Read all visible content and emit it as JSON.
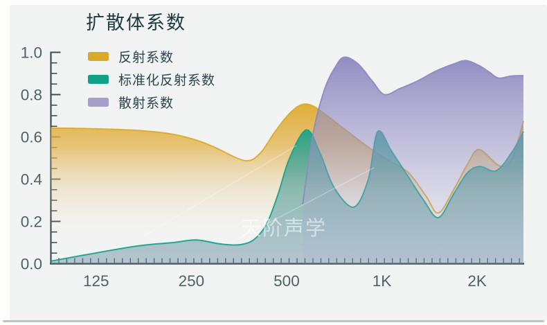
{
  "chart_data": {
    "type": "area",
    "title": "扩散体系数",
    "watermark": "天阶声学",
    "x_axis": {
      "scale": "log2",
      "unit": "Hz",
      "min": 90,
      "max": 2800,
      "minor_ticks_per_octave": 12,
      "ticks": [
        {
          "f": 125,
          "label": "125"
        },
        {
          "f": 250,
          "label": "250"
        },
        {
          "f": 500,
          "label": "500"
        },
        {
          "f": 1000,
          "label": "1K"
        },
        {
          "f": 2000,
          "label": "2K"
        }
      ]
    },
    "y_axis": {
      "min": 0,
      "max": 1,
      "minor_step": 0.05,
      "ticks": [
        {
          "v": 0.0,
          "label": "0.0"
        },
        {
          "v": 0.2,
          "label": "0.2"
        },
        {
          "v": 0.4,
          "label": "0.4"
        },
        {
          "v": 0.6,
          "label": "0.6"
        },
        {
          "v": 0.8,
          "label": "0.8"
        },
        {
          "v": 1.0,
          "label": "1.0"
        }
      ]
    },
    "series": [
      {
        "name": "反射系数",
        "color": "#DBA92C",
        "swatch": "#D9A92B",
        "points": [
          [
            90,
            0.642
          ],
          [
            126,
            0.638
          ],
          [
            171,
            0.63
          ],
          [
            219,
            0.612
          ],
          [
            262,
            0.582
          ],
          [
            297,
            0.55
          ],
          [
            368,
            0.488
          ],
          [
            411,
            0.52
          ],
          [
            455,
            0.615
          ],
          [
            503,
            0.7
          ],
          [
            549,
            0.748
          ],
          [
            591,
            0.752
          ],
          [
            645,
            0.72
          ],
          [
            772,
            0.63
          ],
          [
            898,
            0.555
          ],
          [
            1045,
            0.49
          ],
          [
            1214,
            0.43
          ],
          [
            1377,
            0.32
          ],
          [
            1508,
            0.24
          ],
          [
            1685,
            0.35
          ],
          [
            1863,
            0.47
          ],
          [
            2028,
            0.54
          ],
          [
            2360,
            0.462
          ],
          [
            2580,
            0.5
          ],
          [
            2800,
            0.675
          ]
        ]
      },
      {
        "name": "标准化反射系数",
        "color": "#16A28A",
        "swatch": "#12A089",
        "points": [
          [
            90,
            0.012
          ],
          [
            124,
            0.05
          ],
          [
            171,
            0.085
          ],
          [
            219,
            0.1
          ],
          [
            259,
            0.112
          ],
          [
            310,
            0.093
          ],
          [
            356,
            0.09
          ],
          [
            395,
            0.115
          ],
          [
            433,
            0.19
          ],
          [
            470,
            0.33
          ],
          [
            511,
            0.5
          ],
          [
            578,
            0.633
          ],
          [
            639,
            0.52
          ],
          [
            706,
            0.36
          ],
          [
            815,
            0.268
          ],
          [
            906,
            0.4
          ],
          [
            970,
            0.625
          ],
          [
            1075,
            0.53
          ],
          [
            1225,
            0.4
          ],
          [
            1355,
            0.3
          ],
          [
            1508,
            0.218
          ],
          [
            1685,
            0.33
          ],
          [
            1863,
            0.43
          ],
          [
            2042,
            0.46
          ],
          [
            2300,
            0.44
          ],
          [
            2580,
            0.53
          ],
          [
            2800,
            0.625
          ]
        ]
      },
      {
        "name": "散射系数",
        "color": "#8E8AC0",
        "swatch": "#A3A0CB",
        "points": [
          [
            562,
            0.28
          ],
          [
            607,
            0.62
          ],
          [
            657,
            0.82
          ],
          [
            709,
            0.925
          ],
          [
            760,
            0.977
          ],
          [
            841,
            0.945
          ],
          [
            931,
            0.865
          ],
          [
            1018,
            0.8
          ],
          [
            1137,
            0.828
          ],
          [
            1290,
            0.863
          ],
          [
            1485,
            0.912
          ],
          [
            1685,
            0.945
          ],
          [
            1843,
            0.961
          ],
          [
            2028,
            0.937
          ],
          [
            2177,
            0.908
          ],
          [
            2337,
            0.878
          ],
          [
            2560,
            0.888
          ],
          [
            2800,
            0.89
          ]
        ]
      }
    ],
    "legend_position": "top-left",
    "grid": false,
    "colors": {
      "background": "#F2F4F4",
      "axis": "#3C4E52",
      "tick_label": "#4E6165",
      "title_text": "#1F3A40",
      "bottom_bar": "#B7C6C7"
    }
  }
}
